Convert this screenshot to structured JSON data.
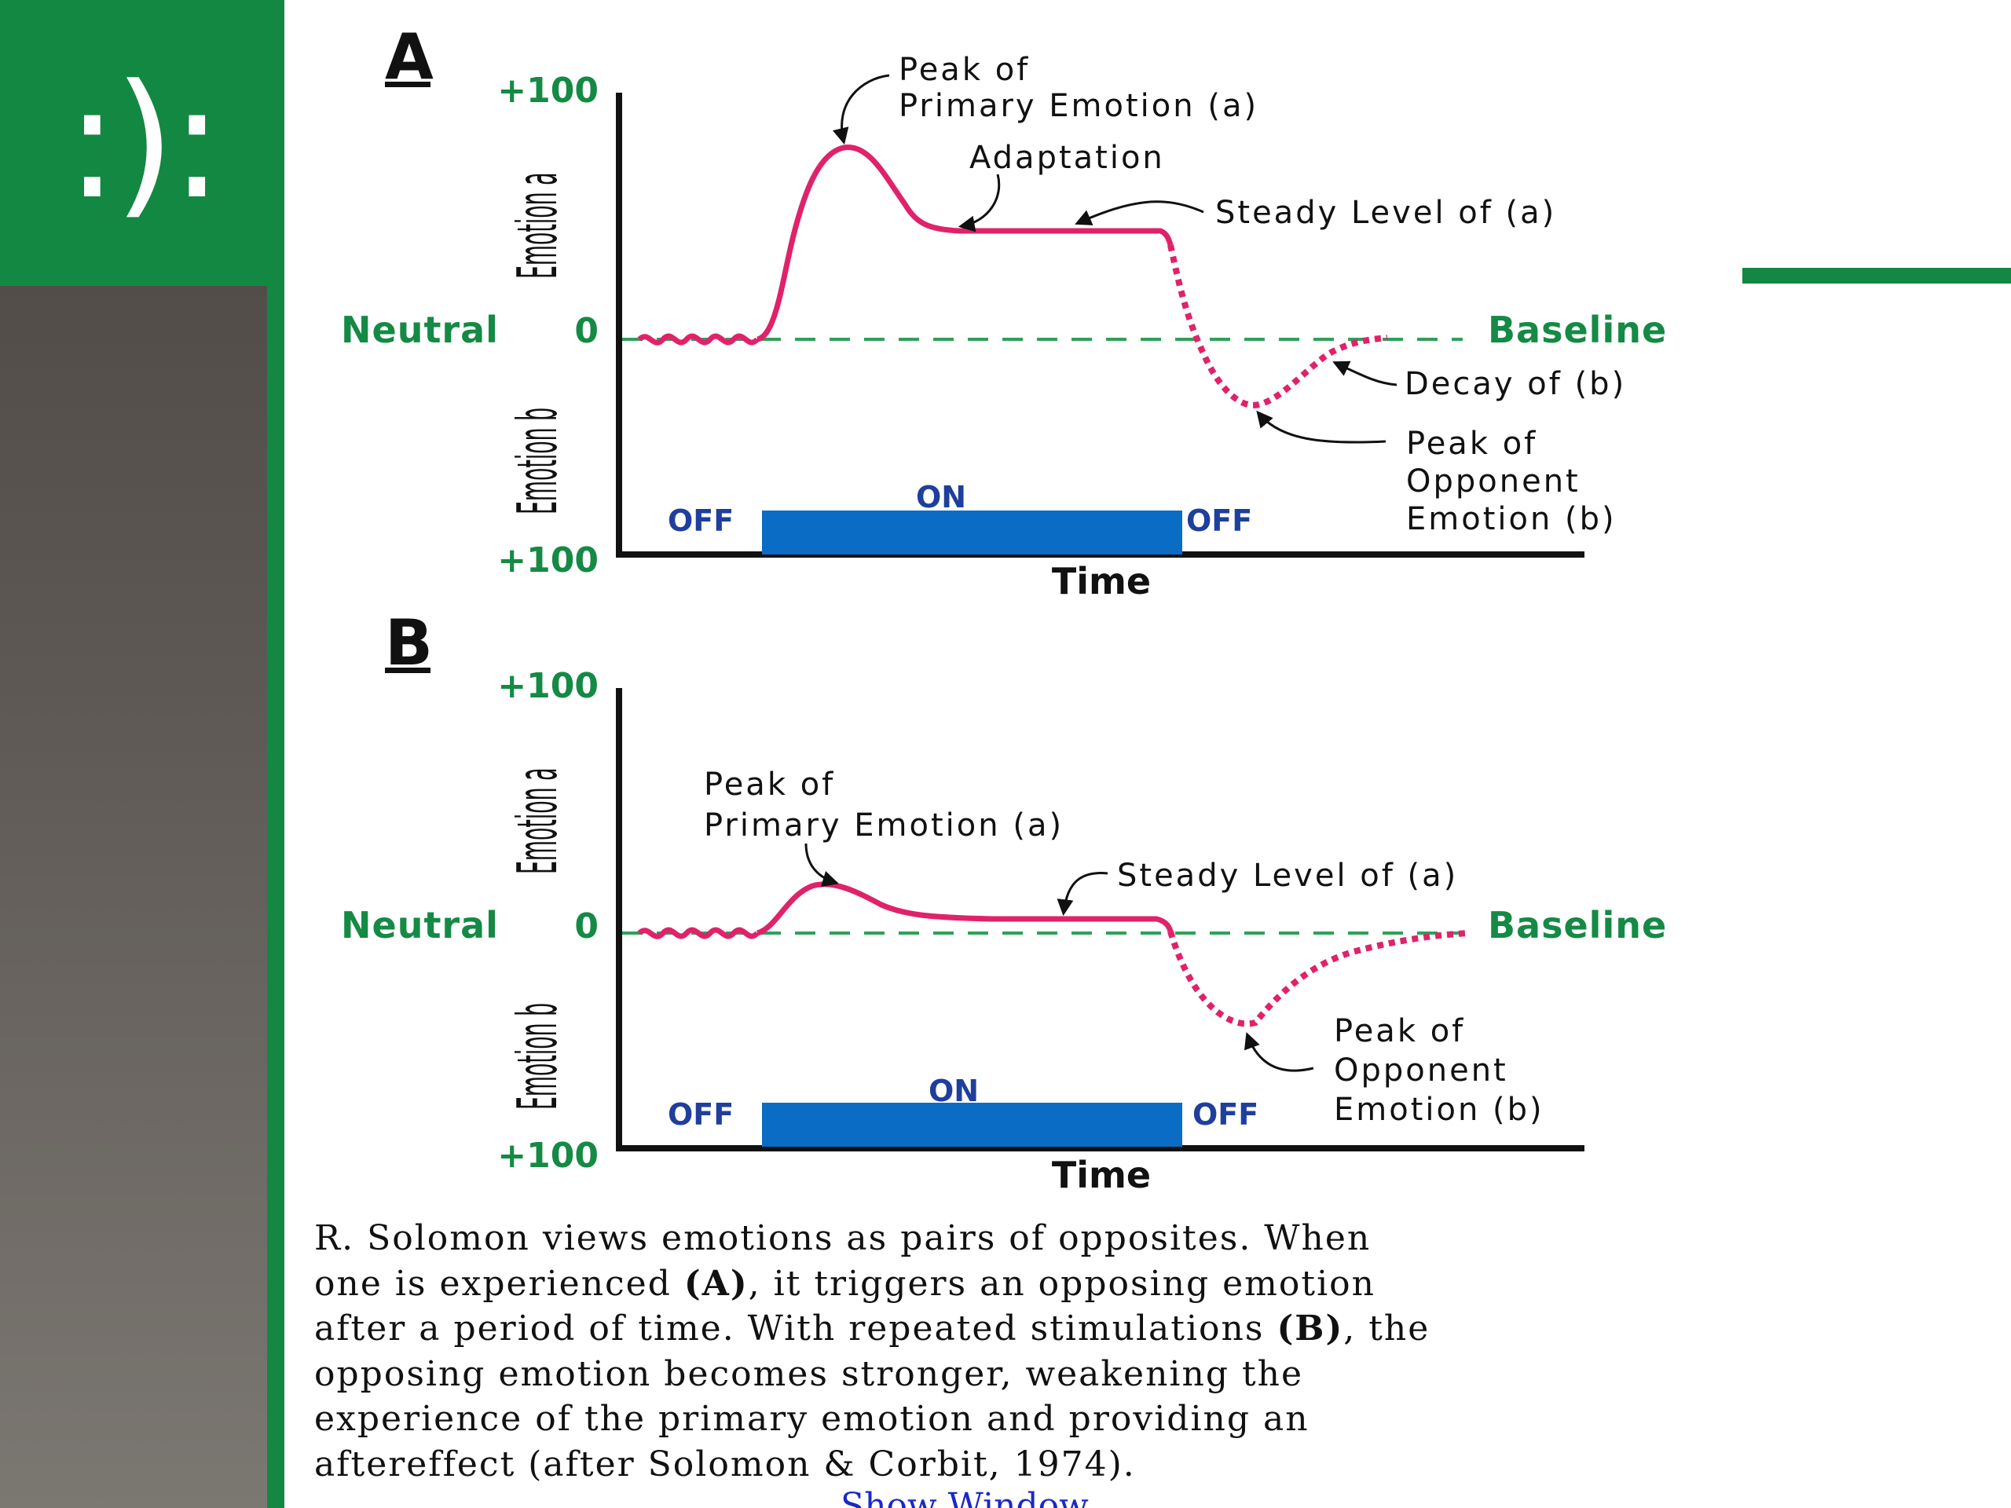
{
  "logo": {
    "text": ":):",
    "color": "#138842"
  },
  "colors": {
    "curve": "#e0226a",
    "baseline": "#2ea05a",
    "on_bar": "#0a6cc4",
    "on_off_text": "#1f3f9c"
  },
  "panels": [
    {
      "label": "A",
      "y_top_label": "+100",
      "y_bottom_label": "+100",
      "zero_label": "0",
      "neutral_label": "Neutral",
      "baseline_label": "Baseline",
      "emotion_a_label": "Emotion a",
      "emotion_b_label": "Emotion b",
      "x_label": "Time",
      "off_left": "OFF",
      "on": "ON",
      "off_right": "OFF",
      "annotations": {
        "peak_primary_1": "Peak of",
        "peak_primary_2": "Primary Emotion (a)",
        "adaptation": "Adaptation",
        "steady": "Steady Level of (a)",
        "decay": "Decay of (b)",
        "peak_opponent_1": "Peak of",
        "peak_opponent_2": "Opponent",
        "peak_opponent_3": "Emotion (b)"
      }
    },
    {
      "label": "B",
      "y_top_label": "+100",
      "y_bottom_label": "+100",
      "zero_label": "0",
      "neutral_label": "Neutral",
      "baseline_label": "Baseline",
      "emotion_a_label": "Emotion a",
      "emotion_b_label": "Emotion b",
      "x_label": "Time",
      "off_left": "OFF",
      "on": "ON",
      "off_right": "OFF",
      "annotations": {
        "peak_primary_1": "Peak of",
        "peak_primary_2": "Primary Emotion (a)",
        "steady": "Steady Level of (a)",
        "peak_opponent_1": "Peak of",
        "peak_opponent_2": "Opponent",
        "peak_opponent_3": "Emotion (b)"
      }
    }
  ],
  "caption": {
    "line1": "R. Solomon views emotions as pairs of opposites. When",
    "line2_a": "one is experienced ",
    "line2_b": "(A)",
    "line2_c": ", it triggers an opposing emotion",
    "line3_a": "after a period of time. With repeated stimulations ",
    "line3_b": "(B)",
    "line3_c": ", the",
    "line4": "opposing emotion becomes stronger, weakening the",
    "line5": "experience of the primary emotion and providing an",
    "line6": "aftereffect (after Solomon & Corbit, 1974).",
    "partial": "Show Window"
  }
}
